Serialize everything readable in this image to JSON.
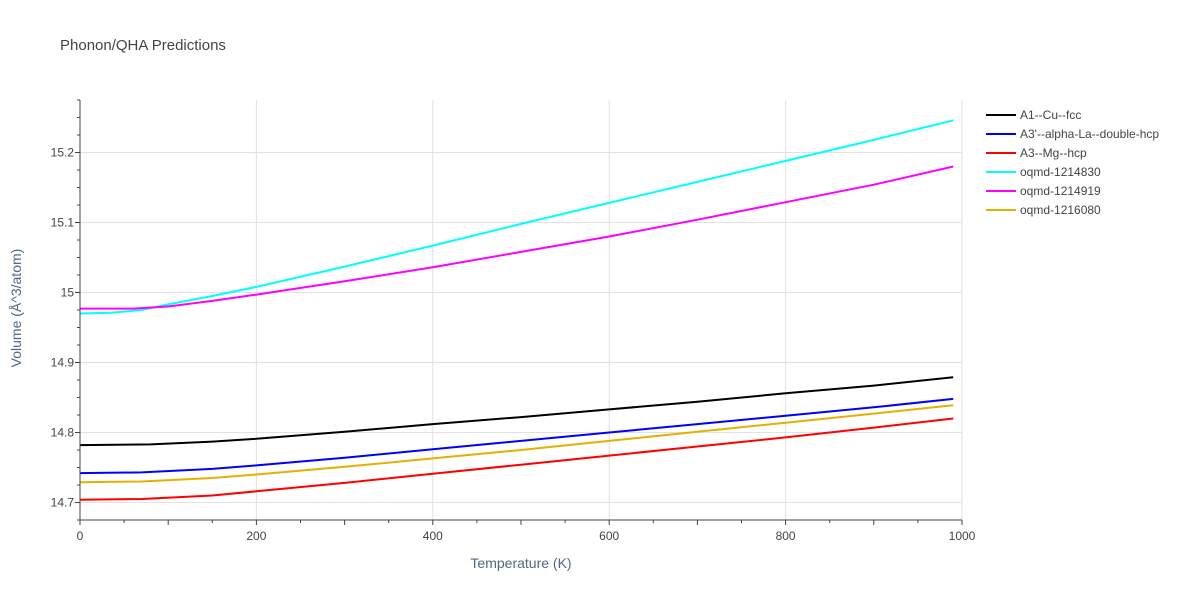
{
  "chart_data": {
    "type": "line",
    "title": "Phonon/QHA Predictions",
    "xlabel": "Temperature (K)",
    "ylabel": "Volume (Å^3/atom)",
    "xlim": [
      0,
      1000
    ],
    "ylim": [
      14.675,
      15.275
    ],
    "xticks": [
      0,
      200,
      400,
      600,
      800,
      1000
    ],
    "yticks": [
      14.7,
      14.8,
      14.9,
      15.0,
      15.1,
      15.2
    ],
    "xtick_labels": [
      "0",
      "200",
      "400",
      "600",
      "800",
      "1000"
    ],
    "ytick_labels": [
      "14.7",
      "14.8",
      "14.9",
      "15",
      "15.1",
      "15.2"
    ],
    "grid": true,
    "legend_position": "top-right",
    "series": [
      {
        "name": "A1--Cu--fcc",
        "color": "#000000",
        "x": [
          0,
          80,
          150,
          200,
          300,
          400,
          500,
          600,
          700,
          800,
          900,
          990
        ],
        "y": [
          14.782,
          14.783,
          14.787,
          14.791,
          14.801,
          14.812,
          14.822,
          14.833,
          14.844,
          14.856,
          14.867,
          14.879
        ]
      },
      {
        "name": "A3'--alpha-La--double-hcp",
        "color": "#0000ff",
        "x": [
          0,
          70,
          150,
          200,
          300,
          400,
          500,
          600,
          700,
          800,
          900,
          990
        ],
        "y": [
          14.742,
          14.743,
          14.748,
          14.753,
          14.764,
          14.776,
          14.788,
          14.8,
          14.812,
          14.824,
          14.836,
          14.848
        ]
      },
      {
        "name": "A3--Mg--hcp",
        "color": "#ff0000",
        "x": [
          0,
          70,
          150,
          200,
          300,
          400,
          500,
          600,
          700,
          800,
          900,
          990
        ],
        "y": [
          14.704,
          14.705,
          14.71,
          14.716,
          14.728,
          14.741,
          14.754,
          14.767,
          14.78,
          14.793,
          14.807,
          14.82
        ]
      },
      {
        "name": "oqmd-1214830",
        "color": "#00ffff",
        "x": [
          0,
          35,
          70,
          100,
          150,
          200,
          300,
          400,
          500,
          600,
          700,
          800,
          900,
          990
        ],
        "y": [
          14.97,
          14.971,
          14.975,
          14.983,
          14.995,
          15.008,
          15.037,
          15.067,
          15.098,
          15.128,
          15.158,
          15.188,
          15.218,
          15.246
        ]
      },
      {
        "name": "oqmd-1214919",
        "color": "#ff00ff",
        "x": [
          0,
          60,
          100,
          150,
          200,
          300,
          400,
          500,
          600,
          700,
          800,
          900,
          990
        ],
        "y": [
          14.977,
          14.977,
          14.98,
          14.988,
          14.997,
          15.016,
          15.036,
          15.058,
          15.08,
          15.104,
          15.129,
          15.154,
          15.18
        ]
      },
      {
        "name": "oqmd-1216080",
        "color": "#e6b000",
        "x": [
          0,
          70,
          150,
          200,
          300,
          400,
          500,
          600,
          700,
          800,
          900,
          990
        ],
        "y": [
          14.729,
          14.73,
          14.735,
          14.74,
          14.751,
          14.763,
          14.775,
          14.788,
          14.801,
          14.814,
          14.827,
          14.839
        ]
      }
    ]
  }
}
